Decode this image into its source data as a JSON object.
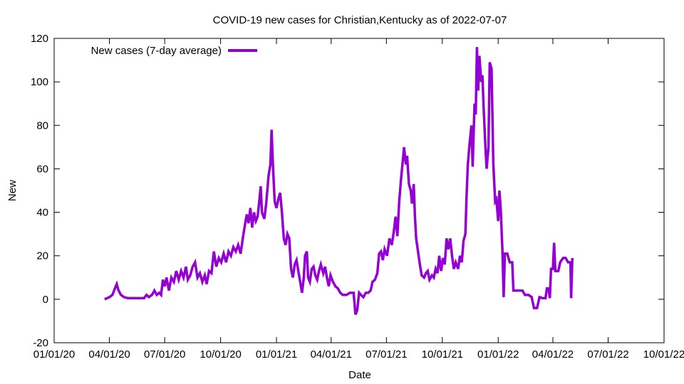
{
  "chart_data": {
    "type": "line",
    "title": "COVID-19 new cases for Christian,Kentucky as of 2022-07-07",
    "xlabel": "Date",
    "ylabel": "New",
    "xlim": [
      "2020-01-01",
      "2022-10-01"
    ],
    "ylim": [
      -20,
      120
    ],
    "x_ticks": [
      "01/01/20",
      "04/01/20",
      "07/01/20",
      "10/01/20",
      "01/01/21",
      "04/01/21",
      "07/01/21",
      "10/01/21",
      "01/01/22",
      "04/01/22",
      "07/01/22",
      "10/01/22"
    ],
    "y_ticks": [
      -20,
      0,
      20,
      40,
      60,
      80,
      100,
      120
    ],
    "grid": false,
    "legend_position": "top-left",
    "color": "#9400d3",
    "series": [
      {
        "name": "New cases (7-day average)",
        "points": [
          [
            "2020-03-24",
            0
          ],
          [
            "2020-04-01",
            1
          ],
          [
            "2020-04-06",
            2
          ],
          [
            "2020-04-10",
            5
          ],
          [
            "2020-04-13",
            7
          ],
          [
            "2020-04-16",
            4
          ],
          [
            "2020-04-20",
            2
          ],
          [
            "2020-04-25",
            1
          ],
          [
            "2020-05-01",
            0.5
          ],
          [
            "2020-05-10",
            0.5
          ],
          [
            "2020-05-20",
            0.5
          ],
          [
            "2020-05-28",
            0.5
          ],
          [
            "2020-06-01",
            2
          ],
          [
            "2020-06-05",
            1
          ],
          [
            "2020-06-10",
            2
          ],
          [
            "2020-06-14",
            4
          ],
          [
            "2020-06-18",
            2
          ],
          [
            "2020-06-22",
            3
          ],
          [
            "2020-06-25",
            2
          ],
          [
            "2020-06-28",
            9
          ],
          [
            "2020-07-01",
            6
          ],
          [
            "2020-07-04",
            10
          ],
          [
            "2020-07-08",
            4
          ],
          [
            "2020-07-12",
            10
          ],
          [
            "2020-07-16",
            8
          ],
          [
            "2020-07-20",
            13
          ],
          [
            "2020-07-24",
            9
          ],
          [
            "2020-07-28",
            13
          ],
          [
            "2020-08-01",
            10
          ],
          [
            "2020-08-05",
            15
          ],
          [
            "2020-08-08",
            9
          ],
          [
            "2020-08-12",
            11
          ],
          [
            "2020-08-16",
            15
          ],
          [
            "2020-08-20",
            17
          ],
          [
            "2020-08-24",
            10
          ],
          [
            "2020-08-28",
            12
          ],
          [
            "2020-09-01",
            8
          ],
          [
            "2020-09-05",
            11
          ],
          [
            "2020-09-08",
            7
          ],
          [
            "2020-09-12",
            13
          ],
          [
            "2020-09-16",
            12
          ],
          [
            "2020-09-20",
            22
          ],
          [
            "2020-09-24",
            15
          ],
          [
            "2020-09-28",
            19
          ],
          [
            "2020-10-02",
            17
          ],
          [
            "2020-10-06",
            21
          ],
          [
            "2020-10-10",
            17
          ],
          [
            "2020-10-14",
            22
          ],
          [
            "2020-10-18",
            20
          ],
          [
            "2020-10-22",
            24
          ],
          [
            "2020-10-26",
            22
          ],
          [
            "2020-10-30",
            25
          ],
          [
            "2020-11-03",
            21
          ],
          [
            "2020-11-07",
            29
          ],
          [
            "2020-11-10",
            34
          ],
          [
            "2020-11-13",
            39
          ],
          [
            "2020-11-16",
            35
          ],
          [
            "2020-11-19",
            42
          ],
          [
            "2020-11-22",
            33
          ],
          [
            "2020-11-25",
            40
          ],
          [
            "2020-11-28",
            36
          ],
          [
            "2020-12-01",
            38
          ],
          [
            "2020-12-04",
            46
          ],
          [
            "2020-12-06",
            52
          ],
          [
            "2020-12-08",
            40
          ],
          [
            "2020-12-12",
            37
          ],
          [
            "2020-12-15",
            44
          ],
          [
            "2020-12-19",
            57
          ],
          [
            "2020-12-22",
            62
          ],
          [
            "2020-12-24",
            78
          ],
          [
            "2020-12-26",
            63
          ],
          [
            "2020-12-29",
            45
          ],
          [
            "2021-01-01",
            42
          ],
          [
            "2021-01-04",
            46
          ],
          [
            "2021-01-07",
            49
          ],
          [
            "2021-01-10",
            40
          ],
          [
            "2021-01-13",
            28
          ],
          [
            "2021-01-16",
            25
          ],
          [
            "2021-01-19",
            30
          ],
          [
            "2021-01-22",
            28
          ],
          [
            "2021-01-25",
            14
          ],
          [
            "2021-01-28",
            10
          ],
          [
            "2021-01-31",
            16
          ],
          [
            "2021-02-03",
            18
          ],
          [
            "2021-02-06",
            13
          ],
          [
            "2021-02-09",
            8
          ],
          [
            "2021-02-12",
            3
          ],
          [
            "2021-02-15",
            10
          ],
          [
            "2021-02-17",
            20
          ],
          [
            "2021-02-20",
            22
          ],
          [
            "2021-02-22",
            10
          ],
          [
            "2021-02-25",
            8
          ],
          [
            "2021-02-28",
            14
          ],
          [
            "2021-03-03",
            15
          ],
          [
            "2021-03-06",
            11
          ],
          [
            "2021-03-09",
            9
          ],
          [
            "2021-03-12",
            13
          ],
          [
            "2021-03-15",
            16
          ],
          [
            "2021-03-19",
            12
          ],
          [
            "2021-03-22",
            15
          ],
          [
            "2021-03-25",
            10
          ],
          [
            "2021-03-28",
            6
          ],
          [
            "2021-03-31",
            11
          ],
          [
            "2021-04-04",
            8
          ],
          [
            "2021-04-08",
            6
          ],
          [
            "2021-04-12",
            5
          ],
          [
            "2021-04-16",
            3
          ],
          [
            "2021-04-20",
            2
          ],
          [
            "2021-04-26",
            2
          ],
          [
            "2021-05-02",
            3
          ],
          [
            "2021-05-08",
            3
          ],
          [
            "2021-05-11",
            -7
          ],
          [
            "2021-05-14",
            -5
          ],
          [
            "2021-05-17",
            3
          ],
          [
            "2021-05-20",
            2
          ],
          [
            "2021-05-24",
            1
          ],
          [
            "2021-05-28",
            3
          ],
          [
            "2021-06-01",
            3
          ],
          [
            "2021-06-05",
            4
          ],
          [
            "2021-06-08",
            8
          ],
          [
            "2021-06-12",
            9
          ],
          [
            "2021-06-16",
            12
          ],
          [
            "2021-06-19",
            21
          ],
          [
            "2021-06-22",
            22
          ],
          [
            "2021-06-25",
            18
          ],
          [
            "2021-06-28",
            23
          ],
          [
            "2021-07-02",
            20
          ],
          [
            "2021-07-06",
            28
          ],
          [
            "2021-07-10",
            25
          ],
          [
            "2021-07-13",
            31
          ],
          [
            "2021-07-16",
            38
          ],
          [
            "2021-07-19",
            29
          ],
          [
            "2021-07-22",
            45
          ],
          [
            "2021-07-25",
            55
          ],
          [
            "2021-07-28",
            64
          ],
          [
            "2021-07-30",
            70
          ],
          [
            "2021-08-02",
            62
          ],
          [
            "2021-08-04",
            66
          ],
          [
            "2021-08-07",
            53
          ],
          [
            "2021-08-10",
            50
          ],
          [
            "2021-08-12",
            44
          ],
          [
            "2021-08-15",
            53
          ],
          [
            "2021-08-17",
            38
          ],
          [
            "2021-08-19",
            28
          ],
          [
            "2021-08-22",
            22
          ],
          [
            "2021-08-25",
            16
          ],
          [
            "2021-08-28",
            11
          ],
          [
            "2021-09-01",
            10
          ],
          [
            "2021-09-04",
            12
          ],
          [
            "2021-09-07",
            13
          ],
          [
            "2021-09-10",
            9
          ],
          [
            "2021-09-14",
            11
          ],
          [
            "2021-09-17",
            10
          ],
          [
            "2021-09-20",
            14
          ],
          [
            "2021-09-23",
            12
          ],
          [
            "2021-09-26",
            20
          ],
          [
            "2021-09-29",
            13
          ],
          [
            "2021-10-02",
            19
          ],
          [
            "2021-10-05",
            16
          ],
          [
            "2021-10-08",
            28
          ],
          [
            "2021-10-11",
            23
          ],
          [
            "2021-10-14",
            28
          ],
          [
            "2021-10-17",
            20
          ],
          [
            "2021-10-20",
            14
          ],
          [
            "2021-10-23",
            17
          ],
          [
            "2021-10-27",
            14
          ],
          [
            "2021-10-30",
            20
          ],
          [
            "2021-11-02",
            17
          ],
          [
            "2021-11-05",
            27
          ],
          [
            "2021-11-08",
            30
          ],
          [
            "2021-11-10",
            48
          ],
          [
            "2021-11-12",
            62
          ],
          [
            "2021-11-15",
            72
          ],
          [
            "2021-11-18",
            80
          ],
          [
            "2021-11-20",
            61
          ],
          [
            "2021-11-23",
            90
          ],
          [
            "2021-11-25",
            85
          ],
          [
            "2021-11-27",
            116
          ],
          [
            "2021-11-29",
            96
          ],
          [
            "2021-12-01",
            112
          ],
          [
            "2021-12-04",
            100
          ],
          [
            "2021-12-06",
            103
          ],
          [
            "2021-12-08",
            88
          ],
          [
            "2021-12-11",
            70
          ],
          [
            "2021-12-13",
            60
          ],
          [
            "2021-12-16",
            70
          ],
          [
            "2021-12-18",
            109
          ],
          [
            "2021-12-21",
            106
          ],
          [
            "2021-12-24",
            62
          ],
          [
            "2021-12-27",
            45
          ],
          [
            "2021-12-29",
            46
          ],
          [
            "2022-01-01",
            36
          ],
          [
            "2022-01-03",
            50
          ],
          [
            "2022-01-05",
            42
          ],
          [
            "2022-01-08",
            22
          ],
          [
            "2022-01-10",
            1
          ],
          [
            "2022-01-12",
            21
          ],
          [
            "2022-01-16",
            21
          ],
          [
            "2022-01-20",
            17
          ],
          [
            "2022-01-24",
            17
          ],
          [
            "2022-01-26",
            4
          ],
          [
            "2022-01-30",
            4
          ],
          [
            "2022-02-05",
            4
          ],
          [
            "2022-02-10",
            4
          ],
          [
            "2022-02-14",
            2
          ],
          [
            "2022-02-20",
            2
          ],
          [
            "2022-02-25",
            1
          ],
          [
            "2022-03-01",
            -4
          ],
          [
            "2022-03-06",
            -4
          ],
          [
            "2022-03-10",
            1
          ],
          [
            "2022-03-15",
            0.5
          ],
          [
            "2022-03-20",
            0.5
          ],
          [
            "2022-03-22",
            5
          ],
          [
            "2022-03-25",
            5
          ],
          [
            "2022-03-27",
            0.5
          ],
          [
            "2022-03-29",
            14
          ],
          [
            "2022-04-01",
            14
          ],
          [
            "2022-04-03",
            26
          ],
          [
            "2022-04-05",
            13
          ],
          [
            "2022-04-10",
            13
          ],
          [
            "2022-04-13",
            17
          ],
          [
            "2022-04-18",
            19
          ],
          [
            "2022-04-22",
            19
          ],
          [
            "2022-04-26",
            17
          ],
          [
            "2022-04-30",
            17
          ],
          [
            "2022-05-01",
            0.5
          ],
          [
            "2022-05-03",
            19
          ]
        ]
      }
    ]
  }
}
